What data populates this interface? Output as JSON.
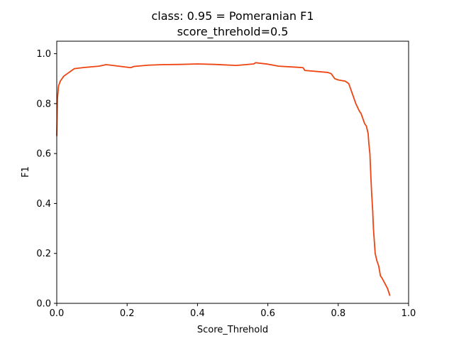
{
  "chart_data": {
    "type": "line",
    "title": "class: 0.95 = Pomeranian F1",
    "subtitle": "score_threhold=0.5",
    "xlabel": "Score_Threhold",
    "ylabel": "F1",
    "xlim": [
      0.0,
      1.0
    ],
    "ylim": [
      0.0,
      1.05
    ],
    "xticks": [
      "0.0",
      "0.2",
      "0.4",
      "0.6",
      "0.8",
      "1.0"
    ],
    "yticks": [
      "0.0",
      "0.2",
      "0.4",
      "0.6",
      "0.8",
      "1.0"
    ],
    "grid": false,
    "series": [
      {
        "color": "#ee4411",
        "x": [
          0.0,
          0.002,
          0.005,
          0.01,
          0.015,
          0.02,
          0.03,
          0.04,
          0.05,
          0.08,
          0.12,
          0.14,
          0.16,
          0.21,
          0.22,
          0.26,
          0.3,
          0.35,
          0.4,
          0.45,
          0.51,
          0.56,
          0.565,
          0.6,
          0.63,
          0.68,
          0.7,
          0.705,
          0.77,
          0.78,
          0.79,
          0.8,
          0.82,
          0.83,
          0.84,
          0.85,
          0.86,
          0.865,
          0.87,
          0.875,
          0.88,
          0.885,
          0.887,
          0.89,
          0.893,
          0.895,
          0.898,
          0.9,
          0.905,
          0.91,
          0.915,
          0.92,
          0.925,
          0.94,
          0.947
        ],
        "y": [
          0.67,
          0.82,
          0.87,
          0.89,
          0.9,
          0.91,
          0.92,
          0.93,
          0.94,
          0.945,
          0.95,
          0.956,
          0.953,
          0.944,
          0.949,
          0.954,
          0.956,
          0.957,
          0.959,
          0.957,
          0.953,
          0.959,
          0.964,
          0.958,
          0.95,
          0.946,
          0.944,
          0.933,
          0.925,
          0.92,
          0.9,
          0.895,
          0.89,
          0.88,
          0.84,
          0.8,
          0.77,
          0.76,
          0.74,
          0.72,
          0.71,
          0.68,
          0.64,
          0.6,
          0.5,
          0.44,
          0.37,
          0.3,
          0.2,
          0.17,
          0.15,
          0.11,
          0.1,
          0.06,
          0.03
        ]
      }
    ]
  }
}
